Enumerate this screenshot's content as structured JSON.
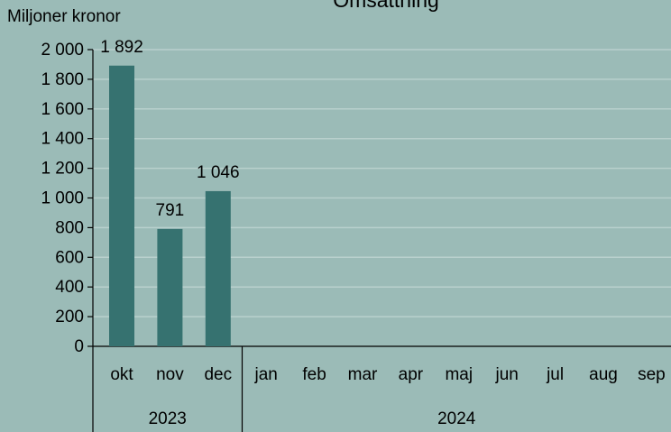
{
  "chart_data": {
    "type": "bar",
    "title": "Omsättning",
    "y_label": "Miljoner kronor",
    "categories": [
      "okt",
      "nov",
      "dec",
      "jan",
      "feb",
      "mar",
      "apr",
      "maj",
      "jun",
      "jul",
      "aug",
      "sep"
    ],
    "groups": [
      "2023",
      "2024"
    ],
    "values": [
      1892,
      791,
      1046,
      null,
      null,
      null,
      null,
      null,
      null,
      null,
      null,
      null
    ],
    "value_labels": [
      "1 892",
      "791",
      "1 046",
      null,
      null,
      null,
      null,
      null,
      null,
      null,
      null,
      null
    ],
    "color": "#367270",
    "ylim": [
      0,
      2000
    ],
    "yticks": [
      0,
      200,
      400,
      600,
      800,
      {
        "value": 1000,
        "label": "1 000"
      },
      {
        "value": 1200,
        "label": "1 200"
      },
      {
        "value": 1400,
        "label": "1 400"
      },
      {
        "value": 1600,
        "label": "1 600"
      },
      {
        "value": 1800,
        "label": "1 800"
      },
      {
        "value": 2000,
        "label": "2 000"
      }
    ],
    "grid": true
  }
}
